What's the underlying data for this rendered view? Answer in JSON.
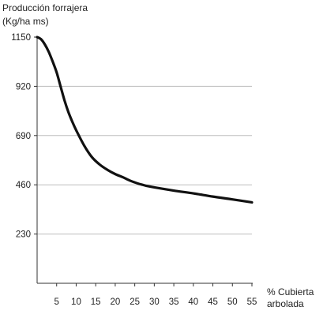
{
  "chart_data": {
    "type": "line",
    "ylabel_lines": [
      "Producción forrajera",
      "(Kg/ha ms)"
    ],
    "xlabel_lines": [
      "% Cubierta",
      "arbolada"
    ],
    "x_ticks": [
      5,
      10,
      15,
      20,
      25,
      30,
      35,
      40,
      45,
      50,
      55
    ],
    "y_ticks": [
      1150,
      920,
      690,
      460,
      230
    ],
    "xlim": [
      0,
      55
    ],
    "ylim": [
      0,
      1150
    ],
    "horizontal_gridlines": true,
    "x": [
      0,
      1,
      2,
      3,
      4,
      5,
      6,
      7,
      8,
      9,
      10,
      12,
      14,
      16,
      18,
      20,
      22,
      24,
      26,
      27,
      28,
      30,
      35,
      40,
      45,
      50,
      55
    ],
    "y": [
      1150,
      1140,
      1115,
      1080,
      1035,
      985,
      920,
      855,
      800,
      755,
      715,
      645,
      590,
      555,
      530,
      510,
      495,
      478,
      465,
      460,
      455,
      448,
      433,
      420,
      405,
      392,
      378
    ],
    "colors": {
      "line": "#111111",
      "axis": "#333333",
      "grid": "#bdbdbd",
      "text": "#222222"
    }
  }
}
